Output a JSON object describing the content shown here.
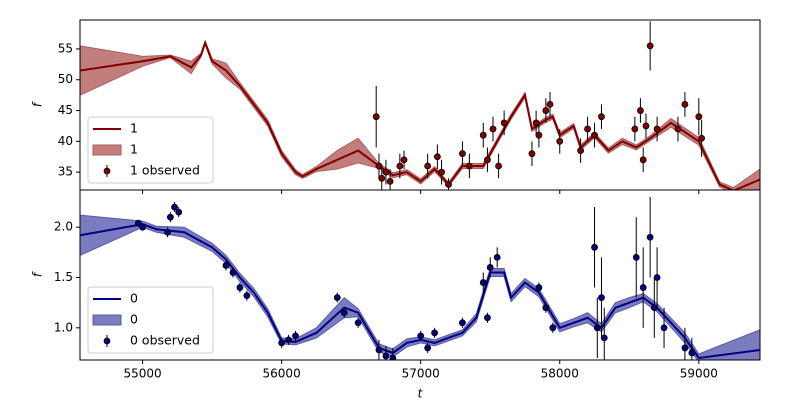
{
  "chart_data": [
    {
      "type": "line",
      "ylabel": "f",
      "legend": "lower left",
      "xlim": [
        54550,
        59440
      ],
      "ylim": [
        32.1,
        59.7
      ],
      "yticks": [
        35,
        40,
        45,
        50,
        55
      ],
      "x": [
        54550,
        55000,
        55200,
        55350,
        55420,
        55450,
        55500,
        55600,
        55700,
        55800,
        55900,
        56000,
        56100,
        56150,
        56250,
        56400,
        56550,
        56700,
        56800,
        56900,
        57000,
        57100,
        57200,
        57300,
        57450,
        57550,
        57650,
        57750,
        57800,
        57900,
        57950,
        58000,
        58100,
        58150,
        58250,
        58350,
        58450,
        58550,
        58650,
        58800,
        59000,
        59150,
        59250,
        59440
      ],
      "series": [
        {
          "name": "1",
          "color": "#800000",
          "values": [
            51.5,
            53,
            53.8,
            52,
            54,
            56,
            53,
            51.5,
            49,
            46,
            43,
            38,
            35,
            34.3,
            35.5,
            37,
            38.5,
            36,
            34.5,
            35,
            33.5,
            35.5,
            33,
            36,
            36,
            40,
            44,
            47.5,
            42,
            43.5,
            44,
            41,
            42.5,
            39,
            41,
            38.5,
            40,
            39,
            40.5,
            43,
            40,
            33,
            32,
            33.8
          ]
        }
      ],
      "band": {
        "name": "1",
        "color": "#b35c5c",
        "lower": [
          47.5,
          52.2,
          53.6,
          51,
          53.7,
          55.7,
          52.6,
          50.3,
          48.5,
          45.5,
          42.5,
          37.5,
          34.6,
          34,
          35.1,
          35.5,
          36.5,
          35.6,
          34.1,
          34.6,
          33.1,
          35.1,
          32.7,
          35.6,
          35.6,
          39.6,
          43.6,
          47.1,
          41.6,
          43.1,
          43.6,
          40.6,
          42.1,
          38.6,
          40.6,
          38.1,
          39.5,
          38.6,
          40.1,
          42.3,
          39.4,
          32.6,
          31.5,
          32.2
        ],
        "upper": [
          55.5,
          53.8,
          54,
          53,
          54.3,
          56.3,
          53.4,
          52.7,
          49.5,
          46.5,
          43.5,
          38.5,
          35.4,
          34.6,
          35.9,
          38.5,
          40.5,
          36.4,
          34.9,
          35.4,
          33.9,
          35.9,
          33.3,
          36.4,
          36.4,
          40.4,
          44.4,
          47.9,
          42.4,
          43.9,
          44.4,
          41.4,
          42.9,
          39.4,
          41.4,
          38.9,
          40.5,
          39.4,
          40.9,
          43.7,
          40.6,
          33.4,
          32.5,
          35.5
        ]
      },
      "observed": {
        "name": "1 observed",
        "color": "#800000",
        "x": [
          56680,
          56700,
          56720,
          56750,
          56780,
          56850,
          56880,
          57050,
          57120,
          57150,
          57200,
          57300,
          57350,
          57450,
          57480,
          57520,
          57560,
          57600,
          57800,
          57830,
          57850,
          57900,
          57930,
          58000,
          58150,
          58200,
          58250,
          58300,
          58540,
          58580,
          58600,
          58620,
          58650,
          58700,
          58850,
          58900,
          59000,
          59020
        ],
        "values": [
          44,
          36,
          34,
          35,
          33.5,
          36,
          37,
          36,
          37.5,
          35,
          33,
          38,
          36,
          41,
          37,
          42,
          36,
          43,
          38,
          43,
          41,
          45,
          46,
          40,
          38.5,
          42,
          41,
          44,
          42,
          45,
          37,
          42.5,
          55.5,
          42,
          42,
          46,
          44,
          40.5
        ],
        "errors": [
          5,
          2,
          2,
          2,
          2,
          2,
          1.5,
          2,
          2,
          2,
          1,
          2,
          2,
          2,
          2,
          2,
          2,
          2,
          2,
          2,
          2,
          2,
          2,
          2,
          2,
          2,
          2,
          2,
          2,
          2,
          2,
          2,
          4,
          2,
          2,
          2,
          3,
          3
        ]
      }
    },
    {
      "type": "line",
      "ylabel": "f",
      "xlabel": "t",
      "legend": "lower left",
      "xlim": [
        54550,
        59440
      ],
      "ylim": [
        0.68,
        2.37
      ],
      "xticks": [
        55000,
        56000,
        57000,
        58000,
        59000
      ],
      "yticks": [
        {
          "value": 1.0,
          "label": "1.0"
        },
        1.5,
        {
          "value": 2.0,
          "label": "2.0"
        }
      ],
      "x": [
        54550,
        55000,
        55100,
        55300,
        55500,
        55600,
        55700,
        55800,
        55900,
        56000,
        56100,
        56250,
        56450,
        56550,
        56700,
        56800,
        56900,
        57000,
        57100,
        57200,
        57300,
        57400,
        57500,
        57600,
        57650,
        57750,
        57850,
        58000,
        58100,
        58200,
        58300,
        58400,
        58500,
        58600,
        58700,
        58900,
        59000,
        59440
      ],
      "series": [
        {
          "name": "0",
          "color": "#000080",
          "values": [
            1.92,
            2.03,
            1.98,
            1.95,
            1.8,
            1.68,
            1.5,
            1.35,
            1.15,
            0.87,
            0.86,
            0.95,
            1.2,
            1.15,
            0.8,
            0.75,
            0.85,
            0.88,
            0.85,
            0.9,
            0.95,
            1.1,
            1.55,
            1.55,
            1.3,
            1.45,
            1.35,
            1.0,
            1.05,
            1.1,
            1.0,
            1.2,
            1.25,
            1.3,
            1.2,
            0.9,
            0.7,
            0.78
          ]
        }
      ],
      "band": {
        "name": "0",
        "color": "#5a5ab0",
        "lower": [
          1.72,
          2.0,
          1.95,
          1.9,
          1.76,
          1.64,
          1.46,
          1.31,
          1.11,
          0.84,
          0.83,
          0.9,
          1.1,
          1.11,
          0.76,
          0.71,
          0.81,
          0.85,
          0.82,
          0.87,
          0.92,
          1.06,
          1.51,
          1.51,
          1.26,
          1.41,
          1.31,
          0.96,
          1.01,
          1.05,
          0.96,
          1.15,
          1.2,
          1.26,
          1.16,
          0.85,
          0.66,
          0.58
        ],
        "upper": [
          2.12,
          2.06,
          2.01,
          2.0,
          1.84,
          1.72,
          1.54,
          1.39,
          1.19,
          0.9,
          0.89,
          1.0,
          1.3,
          1.19,
          0.84,
          0.79,
          0.89,
          0.91,
          0.88,
          0.93,
          0.98,
          1.14,
          1.59,
          1.59,
          1.34,
          1.49,
          1.39,
          1.04,
          1.09,
          1.15,
          1.04,
          1.25,
          1.3,
          1.34,
          1.24,
          0.95,
          0.74,
          0.98
        ]
      },
      "observed": {
        "name": "0 observed",
        "color": "#000080",
        "x": [
          54970,
          55000,
          55200,
          55230,
          55260,
          55180,
          55600,
          55650,
          55700,
          55750,
          56000,
          56050,
          56100,
          56400,
          56450,
          56550,
          56700,
          56750,
          56800,
          57000,
          57050,
          57100,
          57300,
          57450,
          57500,
          57550,
          57480,
          57850,
          57900,
          57950,
          58250,
          58270,
          58300,
          58320,
          58550,
          58600,
          58650,
          58680,
          58700,
          58750,
          58900,
          58950
        ],
        "values": [
          2.04,
          2.0,
          2.1,
          2.2,
          2.15,
          1.95,
          1.62,
          1.55,
          1.4,
          1.32,
          0.85,
          0.88,
          0.92,
          1.3,
          1.15,
          1.05,
          0.78,
          0.72,
          0.7,
          0.92,
          0.8,
          0.95,
          1.05,
          1.45,
          1.6,
          1.7,
          1.1,
          1.4,
          1.2,
          1.0,
          1.8,
          1.0,
          1.3,
          0.9,
          1.7,
          1.4,
          1.9,
          1.2,
          1.5,
          1.0,
          0.8,
          0.75
        ],
        "errors": [
          0.02,
          0.03,
          0.05,
          0.05,
          0.05,
          0.05,
          0.05,
          0.05,
          0.05,
          0.05,
          0.05,
          0.05,
          0.05,
          0.05,
          0.05,
          0.05,
          0.1,
          0.1,
          0.1,
          0.05,
          0.05,
          0.05,
          0.05,
          0.1,
          0.1,
          0.1,
          0.05,
          0.05,
          0.05,
          0.05,
          0.4,
          0.3,
          0.4,
          0.3,
          0.4,
          0.4,
          0.4,
          0.3,
          0.3,
          0.2,
          0.2,
          0.15
        ]
      }
    }
  ]
}
